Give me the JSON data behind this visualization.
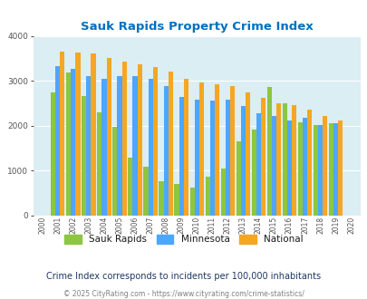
{
  "title": "Sauk Rapids Property Crime Index",
  "years": [
    2000,
    2001,
    2002,
    2003,
    2004,
    2005,
    2006,
    2007,
    2008,
    2009,
    2010,
    2011,
    2012,
    2013,
    2014,
    2015,
    2016,
    2017,
    2018,
    2019,
    2020
  ],
  "sauk_rapids": [
    0,
    2730,
    3175,
    2650,
    2300,
    1980,
    1290,
    1090,
    760,
    700,
    620,
    870,
    1040,
    1650,
    1910,
    2860,
    2490,
    2070,
    2020,
    2060,
    0
  ],
  "minnesota": [
    0,
    3330,
    3260,
    3110,
    3040,
    3100,
    3100,
    3040,
    2880,
    2640,
    2580,
    2560,
    2580,
    2440,
    2280,
    2220,
    2120,
    2180,
    2020,
    2060,
    0
  ],
  "national": [
    0,
    3650,
    3620,
    3600,
    3510,
    3430,
    3370,
    3300,
    3200,
    3040,
    2960,
    2930,
    2890,
    2730,
    2620,
    2490,
    2460,
    2360,
    2210,
    2110,
    0
  ],
  "sauk_color": "#8dc63f",
  "minnesota_color": "#4da6ff",
  "national_color": "#f5a623",
  "plot_bg": "#daeef3",
  "ylim": [
    0,
    4000
  ],
  "yticks": [
    0,
    1000,
    2000,
    3000,
    4000
  ],
  "subtitle": "Crime Index corresponds to incidents per 100,000 inhabitants",
  "copyright": "© 2025 CityRating.com - https://www.cityrating.com/crime-statistics/",
  "title_color": "#0070c0",
  "subtitle_color": "#1f3864",
  "copyright_color": "#808080"
}
